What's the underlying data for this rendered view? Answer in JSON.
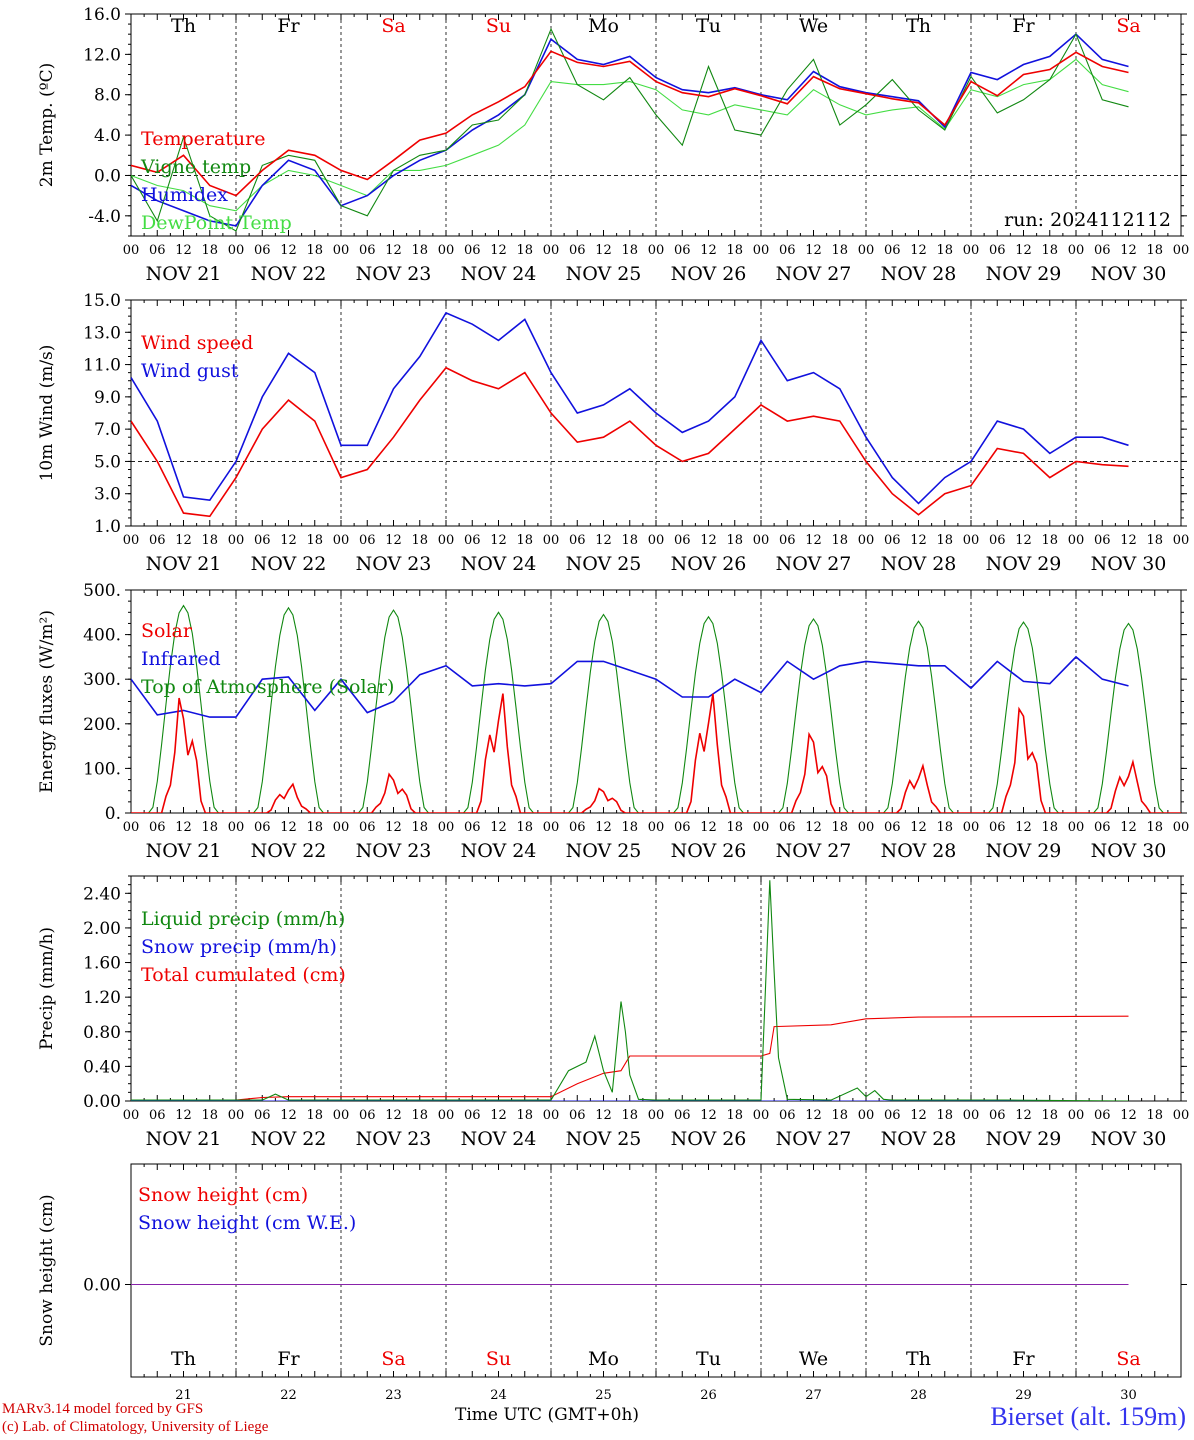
{
  "days": [
    "NOV 21",
    "NOV 22",
    "NOV 23",
    "NOV 24",
    "NOV 25",
    "NOV 26",
    "NOV 27",
    "NOV 28",
    "NOV 29",
    "NOV 30"
  ],
  "weekdays": [
    "Th",
    "Fr",
    "Sa",
    "Su",
    "Mo",
    "Tu",
    "We",
    "Th",
    "Fr",
    "Sa"
  ],
  "weekend": [
    false,
    false,
    true,
    true,
    false,
    false,
    false,
    false,
    false,
    true
  ],
  "day_numbers": [
    "21",
    "22",
    "23",
    "24",
    "25",
    "26",
    "27",
    "28",
    "29",
    "30"
  ],
  "hour_ticks": [
    "00",
    "06",
    "12",
    "18"
  ],
  "end_tick": "00",
  "colors": {
    "red": "#ee0000",
    "green": "#118811",
    "blue": "#1111dd",
    "lightgreen": "#44dd44",
    "purple": "#8822aa"
  },
  "run_label": "run: 2024112112",
  "x_title": "Time UTC (GMT+0h)",
  "credits": [
    "MARv3.14 model forced by GFS",
    "(c) Lab. of Climatology, University of Liege"
  ],
  "station": "Bierset (alt. 159m)",
  "chart_data": [
    {
      "type": "line",
      "ylabel": "2m Temp. (ºC)",
      "ylim": [
        -6,
        16
      ],
      "yticks": [
        "-4.0",
        "0.0",
        "4.0",
        "8.0",
        "12.0",
        "16.0"
      ],
      "ytick_values": [
        -4,
        0,
        4,
        8,
        12,
        16
      ],
      "ref_line": 0,
      "x_unit": "hours since NOV 21 00 UTC",
      "series": [
        {
          "name": "Temperature",
          "color": "red",
          "x": [
            0,
            6,
            12,
            18,
            24,
            30,
            36,
            42,
            48,
            54,
            60,
            66,
            72,
            78,
            84,
            90,
            96,
            102,
            108,
            114,
            120,
            126,
            132,
            138,
            144,
            150,
            156,
            162,
            168,
            174,
            180,
            186,
            192,
            198,
            204,
            210,
            216,
            222,
            228
          ],
          "values": [
            1.0,
            0.3,
            2.0,
            -1.0,
            -2.0,
            0.5,
            2.5,
            2.0,
            0.5,
            -0.4,
            1.5,
            3.5,
            4.2,
            6.0,
            7.3,
            8.8,
            12.3,
            11.2,
            10.8,
            11.3,
            9.3,
            8.2,
            7.8,
            8.6,
            7.9,
            7.1,
            9.8,
            8.6,
            8.1,
            7.6,
            7.2,
            5.0,
            9.3,
            7.9,
            10.0,
            10.5,
            12.2,
            10.8,
            10.2
          ]
        },
        {
          "name": "Vigne temp",
          "color": "green",
          "x": [
            0,
            6,
            12,
            18,
            24,
            30,
            36,
            42,
            48,
            54,
            60,
            66,
            72,
            78,
            84,
            90,
            96,
            102,
            108,
            114,
            120,
            126,
            132,
            138,
            144,
            150,
            156,
            162,
            168,
            174,
            180,
            186,
            192,
            198,
            204,
            210,
            216,
            222,
            228
          ],
          "values": [
            0.0,
            -4.5,
            3.8,
            -4.0,
            -5.5,
            1.0,
            2.0,
            1.5,
            -3.0,
            -4.0,
            0.5,
            2.0,
            2.5,
            5.0,
            5.5,
            8.0,
            14.5,
            9.0,
            7.5,
            9.7,
            6.0,
            3.0,
            10.8,
            4.5,
            4.0,
            8.5,
            11.5,
            5.0,
            7.0,
            9.5,
            6.5,
            4.5,
            9.8,
            6.2,
            7.5,
            9.5,
            14.0,
            7.5,
            6.8
          ]
        },
        {
          "name": "Humidex",
          "color": "blue",
          "x": [
            0,
            6,
            12,
            18,
            24,
            30,
            36,
            42,
            48,
            54,
            60,
            66,
            72,
            78,
            84,
            90,
            96,
            102,
            108,
            114,
            120,
            126,
            132,
            138,
            144,
            150,
            156,
            162,
            168,
            174,
            180,
            186,
            192,
            198,
            204,
            210,
            216,
            222,
            228
          ],
          "values": [
            -1.0,
            -2.5,
            -3.5,
            -4.5,
            -5.0,
            -1.0,
            1.5,
            0.5,
            -3.0,
            -2.0,
            0.0,
            1.5,
            2.5,
            4.5,
            6.0,
            8.0,
            13.5,
            11.5,
            11.0,
            11.8,
            9.7,
            8.5,
            8.2,
            8.7,
            8.0,
            7.5,
            10.3,
            8.8,
            8.2,
            7.8,
            7.4,
            4.8,
            10.2,
            9.5,
            11.0,
            11.8,
            14.0,
            11.5,
            10.8
          ]
        },
        {
          "name": "DewPoint Temp",
          "color": "lightgreen",
          "x": [
            0,
            6,
            12,
            18,
            24,
            30,
            36,
            42,
            48,
            54,
            60,
            66,
            72,
            78,
            84,
            90,
            96,
            102,
            108,
            114,
            120,
            126,
            132,
            138,
            144,
            150,
            156,
            162,
            168,
            174,
            180,
            186,
            192,
            198,
            204,
            210,
            216,
            222,
            228
          ],
          "values": [
            0.0,
            -1.0,
            -1.5,
            -3.0,
            -3.5,
            -1.0,
            0.5,
            0.0,
            -1.0,
            -2.0,
            0.5,
            0.5,
            1.0,
            2.0,
            3.0,
            5.0,
            9.3,
            9.0,
            9.0,
            9.3,
            8.5,
            6.5,
            6.0,
            7.0,
            6.5,
            6.0,
            8.5,
            7.0,
            6.0,
            6.5,
            6.8,
            4.6,
            8.5,
            7.8,
            9.0,
            9.5,
            11.5,
            9.0,
            8.3
          ]
        }
      ],
      "legend": [
        "Temperature",
        "Vigne temp",
        "Humidex",
        "DewPoint Temp"
      ],
      "legend_placement": "left"
    },
    {
      "type": "line",
      "ylabel": "10m Wind (m/s)",
      "ylim": [
        1,
        15
      ],
      "yticks": [
        "1.0",
        "3.0",
        "5.0",
        "7.0",
        "9.0",
        "11.0",
        "13.0",
        "15.0"
      ],
      "ytick_values": [
        1,
        3,
        5,
        7,
        9,
        11,
        13,
        15
      ],
      "ref_line": 5,
      "x_unit": "hours since NOV 21 00 UTC",
      "series": [
        {
          "name": "Wind speed",
          "color": "red",
          "x": [
            0,
            6,
            12,
            18,
            24,
            30,
            36,
            42,
            48,
            54,
            60,
            66,
            72,
            78,
            84,
            90,
            96,
            102,
            108,
            114,
            120,
            126,
            132,
            138,
            144,
            150,
            156,
            162,
            168,
            174,
            180,
            186,
            192,
            198,
            204,
            210,
            216,
            222,
            228
          ],
          "values": [
            7.5,
            5.0,
            1.8,
            1.6,
            4.0,
            7.0,
            8.8,
            7.5,
            4.0,
            4.5,
            6.5,
            8.8,
            10.8,
            10.0,
            9.5,
            10.5,
            8.0,
            6.2,
            6.5,
            7.5,
            6.0,
            5.0,
            5.5,
            7.0,
            8.5,
            7.5,
            7.8,
            7.5,
            5.0,
            3.0,
            1.7,
            3.0,
            3.5,
            5.8,
            5.5,
            4.0,
            5.0,
            4.8,
            4.7
          ]
        },
        {
          "name": "Wind gust",
          "color": "blue",
          "x": [
            0,
            6,
            12,
            18,
            24,
            30,
            36,
            42,
            48,
            54,
            60,
            66,
            72,
            78,
            84,
            90,
            96,
            102,
            108,
            114,
            120,
            126,
            132,
            138,
            144,
            150,
            156,
            162,
            168,
            174,
            180,
            186,
            192,
            198,
            204,
            210,
            216,
            222,
            228
          ],
          "values": [
            10.2,
            7.5,
            2.8,
            2.6,
            5.0,
            9.0,
            11.7,
            10.5,
            6.0,
            6.0,
            9.5,
            11.5,
            14.2,
            13.5,
            12.5,
            13.8,
            10.5,
            8.0,
            8.5,
            9.5,
            8.0,
            6.8,
            7.5,
            9.0,
            12.5,
            10.0,
            10.5,
            9.5,
            6.5,
            4.0,
            2.4,
            4.0,
            5.0,
            7.5,
            7.0,
            5.5,
            6.5,
            6.5,
            6.0
          ]
        }
      ],
      "legend": [
        "Wind speed",
        "Wind gust"
      ],
      "legend_placement": "left"
    },
    {
      "type": "line",
      "ylabel": "Energy fluxes (W/m²)",
      "ylim": [
        0,
        500
      ],
      "yticks": [
        "0.",
        "100.",
        "200.",
        "300.",
        "400.",
        "500."
      ],
      "ytick_values": [
        0,
        100,
        200,
        300,
        400,
        500
      ],
      "x_unit": "hours since NOV 21 00 UTC",
      "series": [
        {
          "name": "Solar",
          "color": "red",
          "peaks": [
            280,
            70,
            95,
            290,
            60,
            290,
            195,
            115,
            260,
            125
          ]
        },
        {
          "name": "Infrared",
          "color": "blue",
          "x": [
            0,
            6,
            12,
            18,
            24,
            30,
            36,
            42,
            48,
            54,
            60,
            66,
            72,
            78,
            84,
            90,
            96,
            102,
            108,
            114,
            120,
            126,
            132,
            138,
            144,
            150,
            156,
            162,
            168,
            174,
            180,
            186,
            192,
            198,
            204,
            210,
            216,
            222,
            228
          ],
          "values": [
            300,
            220,
            230,
            215,
            215,
            300,
            305,
            230,
            300,
            225,
            250,
            310,
            330,
            285,
            290,
            285,
            290,
            340,
            340,
            320,
            300,
            260,
            260,
            300,
            270,
            340,
            300,
            330,
            340,
            335,
            330,
            330,
            280,
            340,
            295,
            290,
            350,
            300,
            285
          ]
        },
        {
          "name": "Top of Atmosphere (Solar)",
          "color": "green",
          "peaks": [
            465,
            460,
            455,
            450,
            445,
            440,
            435,
            430,
            428,
            425
          ]
        }
      ],
      "legend": [
        "Solar",
        "Infrared",
        "Top of Atmosphere (Solar)"
      ],
      "legend_placement": "left"
    },
    {
      "type": "line",
      "ylabel": "Precip (mm/h)",
      "ylim": [
        0,
        2.6
      ],
      "yticks": [
        "0.00",
        "0.40",
        "0.80",
        "1.20",
        "1.60",
        "2.00",
        "2.40"
      ],
      "ytick_values": [
        0,
        0.4,
        0.8,
        1.2,
        1.6,
        2.0,
        2.4
      ],
      "x_unit": "hours since NOV 21 00 UTC",
      "series": [
        {
          "name": "Liquid precip (mm/h)",
          "color": "green",
          "x": [
            0,
            30,
            33,
            36,
            96,
            100,
            104,
            106,
            108,
            110,
            112,
            113,
            114,
            116,
            120,
            144,
            146,
            147,
            148,
            150,
            160,
            166,
            168,
            170,
            172,
            174,
            200,
            228
          ],
          "values": [
            0.01,
            0.01,
            0.08,
            0.01,
            0.01,
            0.35,
            0.45,
            0.75,
            0.35,
            0.1,
            1.15,
            0.8,
            0.3,
            0.02,
            0.01,
            0.01,
            2.55,
            1.5,
            0.5,
            0.02,
            0.01,
            0.15,
            0.05,
            0.12,
            0.02,
            0.01,
            0.01,
            0.0
          ]
        },
        {
          "name": "Snow precip (mm/h)",
          "color": "blue",
          "x": [
            0,
            228
          ],
          "values": [
            0.0,
            0.0
          ]
        },
        {
          "name": "Total cumulated (cm)",
          "color": "red",
          "x": [
            0,
            24,
            30,
            36,
            96,
            102,
            108,
            112,
            114,
            144,
            146,
            147,
            160,
            168,
            180,
            228
          ],
          "values": [
            0.0,
            0.01,
            0.04,
            0.05,
            0.05,
            0.2,
            0.32,
            0.35,
            0.52,
            0.52,
            0.55,
            0.86,
            0.88,
            0.95,
            0.97,
            0.98
          ]
        }
      ],
      "legend": [
        "Liquid precip (mm/h)",
        "Snow precip (mm/h)",
        "Total cumulated (cm)"
      ],
      "legend_placement": "left"
    },
    {
      "type": "line",
      "ylabel": "Snow height (cm)",
      "yticks": [
        "0.00"
      ],
      "ytick_values": [
        0
      ],
      "x_unit": "hours since NOV 21 00 UTC",
      "series": [
        {
          "name": "Snow height (cm)",
          "color": "red",
          "x": [
            0,
            228
          ],
          "values": [
            0,
            0
          ]
        },
        {
          "name": "Snow height (cm W.E.)",
          "color": "blue",
          "x": [
            0,
            228
          ],
          "values": [
            0,
            0
          ]
        }
      ],
      "legend": [
        "Snow height (cm)",
        "Snow height (cm W.E.)"
      ],
      "legend_placement": "left"
    }
  ]
}
